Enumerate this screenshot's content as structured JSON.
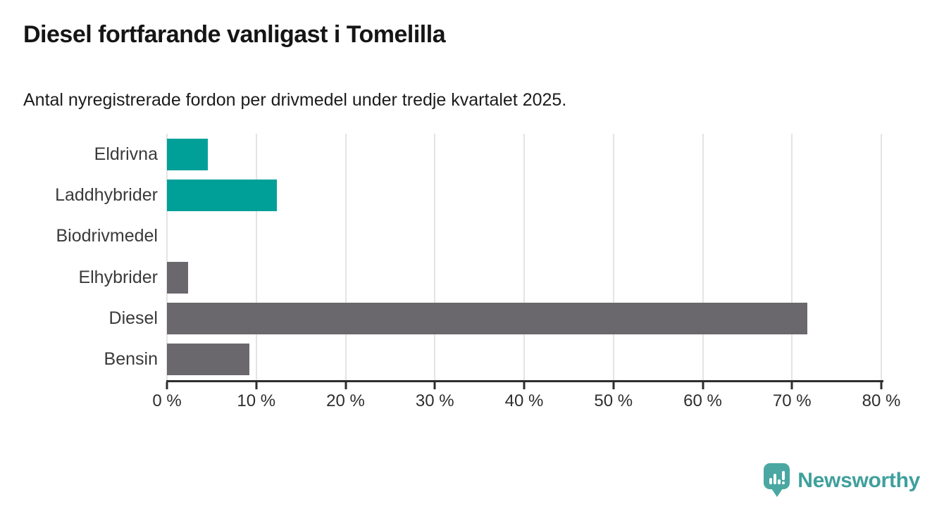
{
  "title": "Diesel fortfarande vanligast i Tomelilla",
  "subtitle": "Antal nyregistrerade fordon per drivmedel under tredje kvartalet 2025.",
  "branding": {
    "name": "Newsworthy",
    "icon": "newsworthy-bubble-bar-chart-icon"
  },
  "colors": {
    "accent_teal": "#00a099",
    "neutral_gray": "#6a686d",
    "logo_teal": "#4aa7a2",
    "logo_text_teal": "#3fa09c",
    "grid_gray": "#e4e4e4",
    "axis_dark": "#2e2e2e"
  },
  "chart_data": {
    "type": "bar",
    "orientation": "horizontal",
    "title": "Diesel fortfarande vanligast i Tomelilla",
    "subtitle": "Antal nyregistrerade fordon per drivmedel under tredje kvartalet 2025.",
    "categories": [
      "Eldrivna",
      "Laddhybrider",
      "Biodrivmedel",
      "Elhybrider",
      "Diesel",
      "Bensin"
    ],
    "values": [
      4.6,
      12.3,
      0,
      2.4,
      71.7,
      9.2
    ],
    "unit": "%",
    "bar_colors": [
      "#00a099",
      "#00a099",
      "#6a686d",
      "#6a686d",
      "#6a686d",
      "#6a686d"
    ],
    "xlim": [
      0,
      80
    ],
    "x_ticks": [
      0,
      10,
      20,
      30,
      40,
      50,
      60,
      70,
      80
    ],
    "x_tick_labels": [
      "0 %",
      "10 %",
      "20 %",
      "30 %",
      "40 %",
      "50 %",
      "60 %",
      "70 %",
      "80 %"
    ],
    "grid": true,
    "legend": false
  }
}
